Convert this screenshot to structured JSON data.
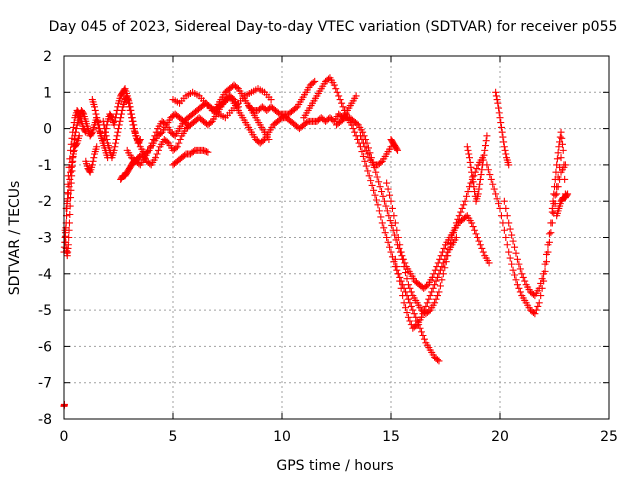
{
  "chart_data": {
    "type": "scatter",
    "title": "Day 045 of 2023, Sidereal Day-to-day VTEC variation (SDTVAR) for receiver p055",
    "xlabel": "GPS time / hours",
    "ylabel": "SDTVAR / TECUs",
    "xlim": [
      0,
      25
    ],
    "ylim": [
      -8,
      2
    ],
    "xticks": [
      0,
      5,
      10,
      15,
      20,
      25
    ],
    "yticks": [
      -8,
      -7,
      -6,
      -5,
      -4,
      -3,
      -2,
      -1,
      0,
      1,
      2
    ],
    "grid": true,
    "marker": "+",
    "series": [
      {
        "name": "SDTVAR",
        "color": "#ff0000",
        "tracks": [
          {
            "x": [
              0.0,
              0.05,
              0.1,
              0.15,
              0.2,
              0.3,
              0.4,
              0.5,
              0.6,
              0.7,
              0.8,
              0.9,
              1.0
            ],
            "y": [
              -3.4,
              -3.0,
              -2.6,
              -2.0,
              -1.3,
              -0.6,
              -0.1,
              0.3,
              0.5,
              0.4,
              0.2,
              0.0,
              -0.1
            ]
          },
          {
            "x": [
              0.05,
              0.1,
              0.15,
              0.2,
              0.25,
              0.3,
              0.35,
              0.4,
              0.45,
              0.5,
              0.6,
              0.7,
              0.8,
              0.9,
              1.0,
              1.1,
              1.2,
              1.3,
              1.4,
              1.5,
              1.6,
              1.7,
              1.8,
              1.9,
              2.0
            ],
            "y": [
              -2.8,
              -3.3,
              -3.5,
              -3.2,
              -2.6,
              -1.9,
              -1.3,
              -0.9,
              -0.5,
              -0.2,
              0.1,
              0.3,
              0.5,
              0.4,
              0.2,
              0.0,
              -0.2,
              -0.1,
              0.1,
              0.3,
              0.0,
              -0.2,
              -0.4,
              -0.6,
              -0.8
            ]
          },
          {
            "x": [
              0.1,
              0.2,
              0.3,
              0.4,
              0.5,
              0.6,
              0.7
            ],
            "y": [
              -2.2,
              -1.8,
              -1.2,
              -0.8,
              -0.5,
              -0.4,
              -0.2
            ]
          },
          {
            "x": [
              1.0,
              1.1,
              1.2,
              1.3,
              1.4,
              1.5
            ],
            "y": [
              -0.9,
              -1.1,
              -1.2,
              -1.0,
              -0.7,
              -0.5
            ]
          },
          {
            "x": [
              1.3,
              1.4,
              1.5,
              1.6,
              1.7,
              1.8,
              1.9,
              2.0,
              2.1,
              2.2,
              2.3,
              2.4,
              2.5,
              2.6,
              2.7,
              2.8,
              2.9,
              3.0,
              3.1,
              3.2,
              3.3,
              3.4,
              3.5
            ],
            "y": [
              0.8,
              0.6,
              0.3,
              0.1,
              -0.2,
              -0.4,
              -0.1,
              0.2,
              0.4,
              0.3,
              0.1,
              0.4,
              0.7,
              0.9,
              1.0,
              1.1,
              0.9,
              0.6,
              0.3,
              0.0,
              -0.2,
              -0.4,
              -0.3
            ]
          },
          {
            "x": [
              1.8,
              1.9,
              2.0,
              2.1,
              2.2,
              2.3,
              2.4,
              2.5,
              2.6,
              2.7,
              2.8,
              2.9,
              3.0,
              3.1,
              3.2,
              3.3
            ],
            "y": [
              0.2,
              -0.1,
              -0.4,
              -0.6,
              -0.8,
              -0.6,
              -0.3,
              0.0,
              0.3,
              0.6,
              0.8,
              0.9,
              0.7,
              0.4,
              0.1,
              -0.2
            ]
          },
          {
            "x": [
              2.6,
              2.7,
              2.8,
              2.9,
              3.0,
              3.1,
              3.2,
              3.3,
              3.4
            ],
            "y": [
              -1.4,
              -1.3,
              -1.3,
              -1.2,
              -1.1,
              -1.0,
              -0.9,
              -0.9,
              -0.8
            ]
          },
          {
            "x": [
              3.3,
              3.5,
              3.7,
              3.9,
              4.1,
              4.3,
              4.5,
              4.7,
              4.9,
              5.1,
              5.3,
              5.5,
              5.7,
              5.9,
              6.1,
              6.3,
              6.5,
              6.7,
              6.9,
              7.1,
              7.3,
              7.5
            ],
            "y": [
              -0.2,
              -0.5,
              -0.7,
              -0.6,
              -0.3,
              0.0,
              0.2,
              0.1,
              -0.1,
              -0.2,
              0.0,
              0.2,
              0.3,
              0.4,
              0.5,
              0.6,
              0.7,
              0.6,
              0.5,
              0.6,
              0.7,
              0.8
            ]
          },
          {
            "x": [
              2.9,
              3.1,
              3.3,
              3.5,
              3.7,
              3.9,
              4.1,
              4.3,
              4.5,
              4.7,
              4.9,
              5.1,
              5.3,
              5.5,
              5.7
            ],
            "y": [
              -0.6,
              -0.8,
              -0.9,
              -1.0,
              -0.8,
              -0.6,
              -0.4,
              -0.2,
              -0.1,
              0.1,
              0.3,
              0.4,
              0.3,
              0.2,
              0.1
            ]
          },
          {
            "x": [
              3.4,
              3.6,
              3.8,
              4.0,
              4.2,
              4.4,
              4.6,
              4.8,
              5.0,
              5.2,
              5.4,
              5.6,
              5.8,
              6.0,
              6.2,
              6.4,
              6.6,
              6.8,
              7.0,
              7.2,
              7.4,
              7.6,
              7.8,
              8.0
            ],
            "y": [
              -0.8,
              -0.7,
              -0.9,
              -1.0,
              -0.8,
              -0.5,
              -0.3,
              -0.4,
              -0.6,
              -0.5,
              -0.2,
              0.0,
              0.1,
              0.2,
              0.3,
              0.2,
              0.1,
              0.2,
              0.4,
              0.6,
              0.8,
              0.9,
              0.8,
              0.6
            ]
          },
          {
            "x": [
              5.0,
              5.2,
              5.4,
              5.6,
              5.8,
              6.0,
              6.2,
              6.4,
              6.6
            ],
            "y": [
              -1.0,
              -0.9,
              -0.8,
              -0.7,
              -0.7,
              -0.6,
              -0.6,
              -0.6,
              -0.65
            ]
          },
          {
            "x": [
              5.0,
              5.3,
              5.6,
              5.9,
              6.2,
              6.5,
              6.8,
              7.1,
              7.4,
              7.7,
              8.0,
              8.3,
              8.6,
              8.9,
              9.2,
              9.5
            ],
            "y": [
              0.8,
              0.7,
              0.9,
              1.0,
              0.9,
              0.7,
              0.5,
              0.4,
              0.3,
              0.5,
              0.7,
              0.9,
              1.0,
              1.1,
              1.0,
              0.8
            ]
          },
          {
            "x": [
              7.0,
              7.2,
              7.4,
              7.6,
              7.8,
              8.0,
              8.2,
              8.4,
              8.6,
              8.8,
              9.0,
              9.2,
              9.4
            ],
            "y": [
              0.6,
              0.8,
              1.0,
              1.1,
              1.2,
              1.1,
              0.9,
              0.7,
              0.5,
              0.3,
              0.1,
              -0.1,
              -0.3
            ]
          },
          {
            "x": [
              7.6,
              7.8,
              8.0,
              8.2,
              8.4,
              8.6,
              8.8,
              9.0,
              9.2,
              9.4,
              9.6,
              9.8,
              10.0,
              10.2,
              10.4,
              10.6,
              10.8,
              11.0,
              11.2,
              11.4,
              11.6,
              11.8,
              12.0,
              12.2,
              12.4,
              12.6,
              12.8,
              13.0,
              13.2,
              13.4
            ],
            "y": [
              0.9,
              0.7,
              0.5,
              0.3,
              0.1,
              -0.1,
              -0.3,
              -0.4,
              -0.3,
              -0.1,
              0.1,
              0.2,
              0.3,
              0.3,
              0.2,
              0.1,
              0.0,
              0.1,
              0.2,
              0.2,
              0.2,
              0.3,
              0.2,
              0.3,
              0.2,
              0.4,
              0.3,
              0.5,
              0.7,
              0.9
            ]
          },
          {
            "x": [
              8.5,
              8.7,
              8.9,
              9.1,
              9.3,
              9.5,
              9.7,
              9.9,
              10.1,
              10.3,
              10.5,
              10.7,
              10.9,
              11.1,
              11.3,
              11.5
            ],
            "y": [
              0.6,
              0.5,
              0.5,
              0.6,
              0.5,
              0.6,
              0.5,
              0.4,
              0.4,
              0.4,
              0.5,
              0.6,
              0.8,
              1.0,
              1.2,
              1.3
            ]
          },
          {
            "x": [
              11.0,
              11.2,
              11.4,
              11.6,
              11.8,
              12.0,
              12.2,
              12.4,
              12.6,
              12.8,
              13.0,
              13.2,
              13.4,
              13.6,
              13.8,
              14.0,
              14.2,
              14.4,
              14.6,
              14.8,
              15.0,
              15.2,
              15.4,
              15.6,
              15.8,
              16.0,
              16.2,
              16.4,
              16.6,
              16.8,
              17.0,
              17.2
            ],
            "y": [
              0.3,
              0.5,
              0.7,
              0.9,
              1.1,
              1.3,
              1.4,
              1.2,
              0.9,
              0.6,
              0.3,
              0.1,
              -0.2,
              -0.5,
              -0.9,
              -1.3,
              -1.7,
              -2.1,
              -2.6,
              -3.0,
              -3.4,
              -3.8,
              -4.1,
              -4.4,
              -4.7,
              -5.0,
              -5.3,
              -5.6,
              -5.9,
              -6.1,
              -6.3,
              -6.4
            ]
          },
          {
            "x": [
              12.5,
              12.7,
              12.9,
              13.1,
              13.3,
              13.5,
              13.7,
              13.9,
              14.1,
              14.3,
              14.5,
              14.7,
              14.9,
              15.1,
              15.3,
              15.5,
              15.7,
              15.9,
              16.1,
              16.3,
              16.5,
              16.7,
              16.9,
              17.1,
              17.3,
              17.5,
              17.7,
              17.9,
              18.1,
              18.3,
              18.5,
              18.7,
              18.9,
              19.1,
              19.3,
              19.5
            ],
            "y": [
              0.1,
              0.2,
              0.3,
              0.3,
              0.2,
              0.1,
              -0.1,
              -0.4,
              -0.8,
              -1.2,
              -1.6,
              -2.0,
              -2.4,
              -2.8,
              -3.2,
              -3.5,
              -3.8,
              -4.0,
              -4.2,
              -4.3,
              -4.4,
              -4.3,
              -4.1,
              -3.8,
              -3.5,
              -3.2,
              -3.0,
              -2.8,
              -2.6,
              -2.5,
              -2.4,
              -2.6,
              -2.9,
              -3.2,
              -3.5,
              -3.7
            ]
          },
          {
            "x": [
              13.6,
              13.8,
              14.0,
              14.2,
              14.4,
              14.6,
              14.8,
              15.0
            ],
            "y": [
              -0.2,
              -0.5,
              -0.8,
              -1.0,
              -1.0,
              -0.9,
              -0.7,
              -0.5
            ]
          },
          {
            "x": [
              15.0,
              15.1,
              15.2,
              15.3
            ],
            "y": [
              -0.3,
              -0.4,
              -0.5,
              -0.6
            ]
          },
          {
            "x": [
              14.8,
              15.0,
              15.2,
              15.4,
              15.6,
              15.8,
              16.0,
              16.2,
              16.4,
              16.6,
              16.8,
              17.0,
              17.2,
              17.4,
              17.6,
              17.8,
              18.0,
              18.2,
              18.4,
              18.6,
              18.8,
              19.0,
              19.2
            ],
            "y": [
              -1.5,
              -2.0,
              -2.6,
              -3.2,
              -3.8,
              -4.3,
              -4.6,
              -4.8,
              -5.0,
              -5.1,
              -5.0,
              -4.8,
              -4.5,
              -4.0,
              -3.5,
              -3.0,
              -2.6,
              -2.3,
              -2.0,
              -1.6,
              -1.3,
              -1.0,
              -0.8
            ]
          },
          {
            "x": [
              15.2,
              15.4,
              15.6,
              15.8,
              16.0,
              16.2,
              16.4,
              16.6,
              16.8,
              17.0,
              17.2,
              17.4,
              17.6,
              17.8,
              18.0
            ],
            "y": [
              -3.6,
              -4.2,
              -4.8,
              -5.2,
              -5.5,
              -5.4,
              -5.2,
              -4.9,
              -4.6,
              -4.3,
              -4.0,
              -3.7,
              -3.4,
              -3.2,
              -3.0
            ]
          },
          {
            "x": [
              18.5,
              18.6,
              18.7,
              18.8,
              18.9,
              19.0,
              19.1,
              19.2,
              19.3,
              19.4
            ],
            "y": [
              -0.5,
              -0.8,
              -1.2,
              -1.6,
              -2.0,
              -1.8,
              -1.4,
              -1.0,
              -0.6,
              -0.2
            ]
          },
          {
            "x": [
              19.8,
              19.9,
              20.0,
              20.1,
              20.2,
              20.3,
              20.4
            ],
            "y": [
              1.0,
              0.7,
              0.3,
              -0.1,
              -0.5,
              -0.8,
              -1.0
            ]
          },
          {
            "x": [
              19.4,
              19.6,
              19.8,
              20.0,
              20.2,
              20.4,
              20.6,
              20.8,
              21.0,
              21.2,
              21.4,
              21.6,
              21.8,
              22.0,
              22.2,
              22.4,
              22.6,
              22.8,
              23.0
            ],
            "y": [
              -1.0,
              -1.4,
              -1.8,
              -2.2,
              -2.8,
              -3.4,
              -3.9,
              -4.3,
              -4.6,
              -4.8,
              -5.0,
              -5.1,
              -4.8,
              -4.2,
              -3.4,
              -2.6,
              -1.8,
              -1.2,
              -1.0
            ]
          },
          {
            "x": [
              20.2,
              20.4,
              20.6,
              20.8,
              21.0,
              21.2,
              21.4,
              21.6,
              21.8,
              22.0,
              22.2,
              22.4,
              22.6,
              22.8
            ],
            "y": [
              -2.0,
              -2.6,
              -3.1,
              -3.6,
              -4.0,
              -4.3,
              -4.5,
              -4.6,
              -4.4,
              -4.0,
              -3.2,
              -2.3,
              -1.6,
              -0.8
            ]
          },
          {
            "x": [
              22.4,
              22.5,
              22.6,
              22.7,
              22.8,
              22.9,
              23.0
            ],
            "y": [
              -2.2,
              -1.6,
              -1.0,
              -0.5,
              -0.1,
              -0.6,
              -1.8
            ]
          },
          {
            "x": [
              22.6,
              22.7,
              22.8,
              22.9,
              23.0,
              23.1
            ],
            "y": [
              -2.4,
              -2.2,
              -2.0,
              -1.9,
              -1.9,
              -1.8
            ]
          },
          {
            "x": [
              0.0,
              0.02
            ],
            "y": [
              -7.65,
              -7.6
            ]
          }
        ]
      }
    ]
  }
}
